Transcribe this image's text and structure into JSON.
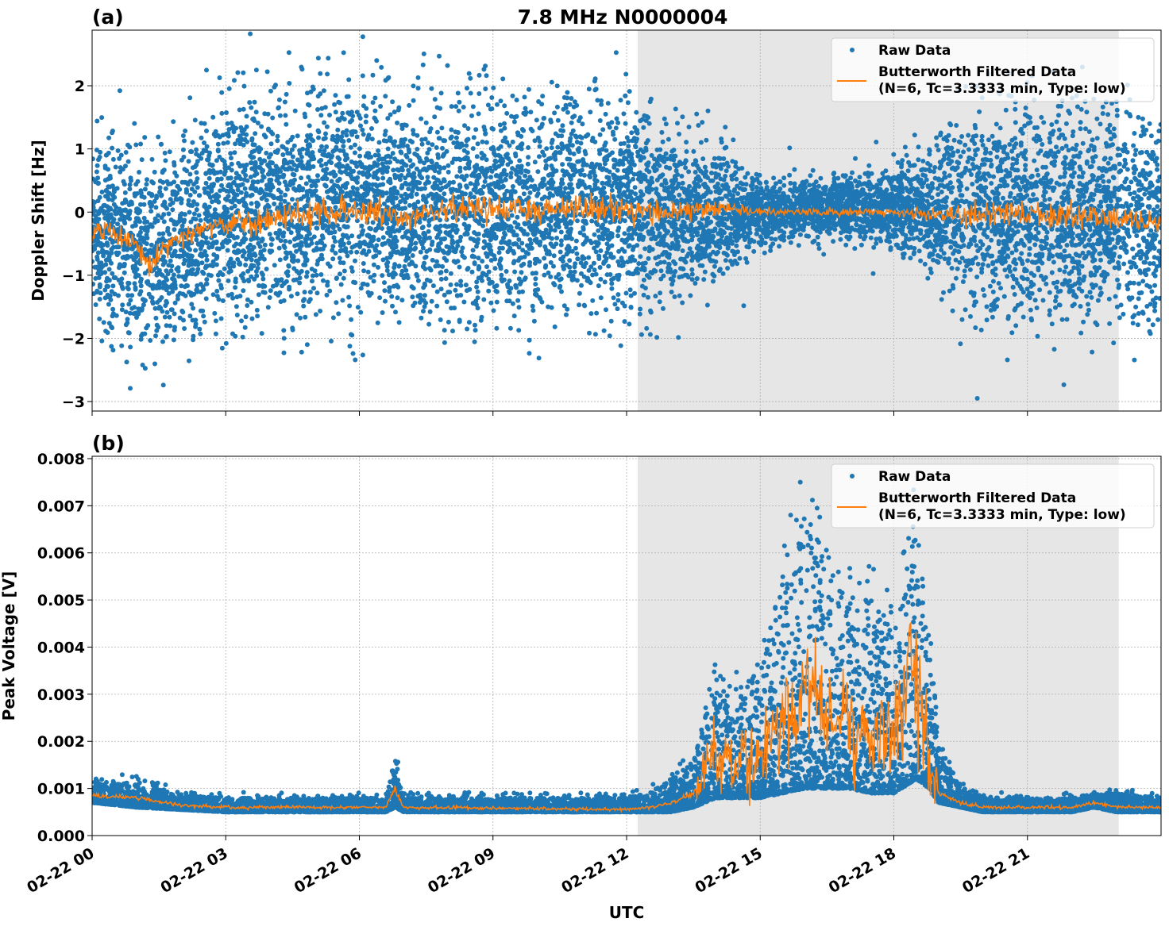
{
  "chart_data": [
    {
      "type": "scatter",
      "panel_label": "(a)",
      "title": "7.8 MHz N0000004",
      "xlabel": "",
      "ylabel": "Doppler Shift [Hz]",
      "x_unit": "hours UTC on 02-22",
      "xlim": [
        0,
        24
      ],
      "ylim": [
        -3.15,
        2.88
      ],
      "x_ticks": [
        0,
        3,
        6,
        9,
        12,
        15,
        18,
        21
      ],
      "x_tick_labels": [
        "02-22 00",
        "02-22 03",
        "02-22 06",
        "02-22 09",
        "02-22 12",
        "02-22 15",
        "02-22 18",
        "02-22 21"
      ],
      "y_ticks": [
        -3,
        -2,
        -1,
        0,
        1,
        2
      ],
      "y_tick_labels": [
        "−3",
        "−2",
        "−1",
        "0",
        "1",
        "2"
      ],
      "grid": true,
      "shaded_interval_hours": [
        12.25,
        23.05
      ],
      "shade_color": "#e6e6e6",
      "legend": {
        "placement": "top-right",
        "entries": [
          "Raw Data",
          "Butterworth Filtered Data",
          "(N=6, Tc=3.3333 min, Type: low)"
        ]
      },
      "series": [
        {
          "name": "Raw Data",
          "kind": "scatter",
          "color": "#1f77b4",
          "envelope": {
            "x": [
              0,
              0.5,
              1,
              1.5,
              2,
              2.5,
              3,
              4,
              5,
              6,
              7,
              8,
              9,
              10,
              11,
              12,
              13,
              14,
              14.5,
              15,
              16,
              17,
              18,
              18.7,
              19,
              19.5,
              20,
              21,
              22,
              23,
              24
            ],
            "lo": [
              -1.5,
              -1.6,
              -2.0,
              -2.2,
              -1.9,
              -1.6,
              -1.4,
              -1.5,
              -1.4,
              -1.4,
              -1.4,
              -1.5,
              -1.5,
              -1.4,
              -1.4,
              -1.4,
              -1.3,
              -1.0,
              -0.7,
              -0.45,
              -0.35,
              -0.35,
              -0.45,
              -0.6,
              -0.9,
              -1.4,
              -1.5,
              -1.5,
              -1.4,
              -1.4,
              -1.5
            ],
            "hi": [
              1.0,
              1.1,
              0.8,
              0.8,
              1.0,
              1.3,
              1.5,
              1.6,
              1.6,
              1.7,
              1.5,
              1.6,
              1.6,
              1.6,
              1.6,
              1.5,
              1.2,
              0.9,
              0.6,
              0.45,
              0.45,
              0.5,
              0.6,
              0.8,
              1.0,
              1.4,
              1.5,
              1.5,
              1.3,
              1.4,
              1.2
            ]
          }
        },
        {
          "name": "Butterworth Filtered Data",
          "kind": "line",
          "color": "#ff7f0e",
          "x": [
            0,
            0.5,
            1,
            1.3,
            1.5,
            2,
            2.5,
            3,
            4,
            5,
            6,
            7,
            8,
            9,
            10,
            11,
            12,
            13,
            14,
            15,
            16,
            17,
            18,
            19,
            20,
            21,
            22,
            23,
            24
          ],
          "y": [
            -0.3,
            -0.35,
            -0.5,
            -0.9,
            -0.6,
            -0.4,
            -0.25,
            -0.15,
            -0.1,
            0.0,
            0.05,
            -0.1,
            0.05,
            0.05,
            0.05,
            0.1,
            0.05,
            0.0,
            0.05,
            0.0,
            0.0,
            0.0,
            0.0,
            -0.05,
            0.0,
            -0.05,
            -0.05,
            -0.1,
            -0.2
          ]
        }
      ]
    },
    {
      "type": "scatter",
      "panel_label": "(b)",
      "xlabel": "UTC",
      "ylabel": "Peak Voltage [V]",
      "x_unit": "hours UTC on 02-22",
      "xlim": [
        0,
        24
      ],
      "ylim": [
        0,
        0.00805
      ],
      "x_ticks": [
        0,
        3,
        6,
        9,
        12,
        15,
        18,
        21
      ],
      "x_tick_labels": [
        "02-22 00",
        "02-22 03",
        "02-22 06",
        "02-22 09",
        "02-22 12",
        "02-22 15",
        "02-22 18",
        "02-22 21"
      ],
      "y_ticks": [
        0,
        0.001,
        0.002,
        0.003,
        0.004,
        0.005,
        0.006,
        0.007,
        0.008
      ],
      "y_tick_labels": [
        "0.000",
        "0.001",
        "0.002",
        "0.003",
        "0.004",
        "0.005",
        "0.006",
        "0.007",
        "0.008"
      ],
      "grid": true,
      "shaded_interval_hours": [
        12.25,
        23.05
      ],
      "shade_color": "#e6e6e6",
      "legend": {
        "placement": "top-right",
        "entries": [
          "Raw Data",
          "Butterworth Filtered Data",
          "(N=6, Tc=3.3333 min, Type: low)"
        ]
      },
      "series": [
        {
          "name": "Raw Data",
          "kind": "scatter",
          "color": "#1f77b4",
          "envelope": {
            "x": [
              0,
              1,
              2,
              3,
              6.6,
              6.8,
              7.0,
              12,
              12.5,
              13,
              13.5,
              14,
              14.5,
              15,
              15.5,
              16,
              16.5,
              17,
              17.5,
              18,
              18.5,
              18.8,
              19,
              19.5,
              20,
              22,
              22.5,
              23,
              24
            ],
            "lo": [
              0.0007,
              0.0006,
              0.00055,
              0.0005,
              0.0005,
              0.0006,
              0.0005,
              0.0005,
              0.0005,
              0.0005,
              0.0006,
              0.0008,
              0.0008,
              0.0008,
              0.0009,
              0.001,
              0.001,
              0.001,
              0.0009,
              0.0009,
              0.0012,
              0.001,
              0.0007,
              0.0006,
              0.0005,
              0.0005,
              0.0006,
              0.0005,
              0.0005
            ],
            "hi": [
              0.0012,
              0.0011,
              0.00085,
              0.0008,
              0.0008,
              0.0017,
              0.0008,
              0.0008,
              0.0009,
              0.0012,
              0.0016,
              0.0035,
              0.003,
              0.0035,
              0.0055,
              0.0068,
              0.0055,
              0.005,
              0.005,
              0.0045,
              0.0068,
              0.004,
              0.002,
              0.001,
              0.0008,
              0.0008,
              0.0009,
              0.0009,
              0.0008
            ]
          }
        },
        {
          "name": "Butterworth Filtered Data",
          "kind": "line",
          "color": "#ff7f0e",
          "x": [
            0,
            1,
            2,
            3,
            6.6,
            6.8,
            7.0,
            12,
            12.5,
            13,
            13.5,
            14,
            14.5,
            15,
            15.5,
            16,
            16.5,
            17,
            17.5,
            18,
            18.5,
            18.8,
            19,
            19.5,
            20,
            22,
            22.5,
            23,
            24
          ],
          "y": [
            0.00085,
            0.0008,
            0.00065,
            0.0006,
            0.0006,
            0.001,
            0.0006,
            0.00055,
            0.0006,
            0.0007,
            0.0009,
            0.0017,
            0.0015,
            0.0016,
            0.0025,
            0.003,
            0.0025,
            0.0025,
            0.002,
            0.0022,
            0.0035,
            0.0015,
            0.0009,
            0.0007,
            0.0006,
            0.0006,
            0.0007,
            0.0006,
            0.0006
          ]
        }
      ]
    }
  ]
}
